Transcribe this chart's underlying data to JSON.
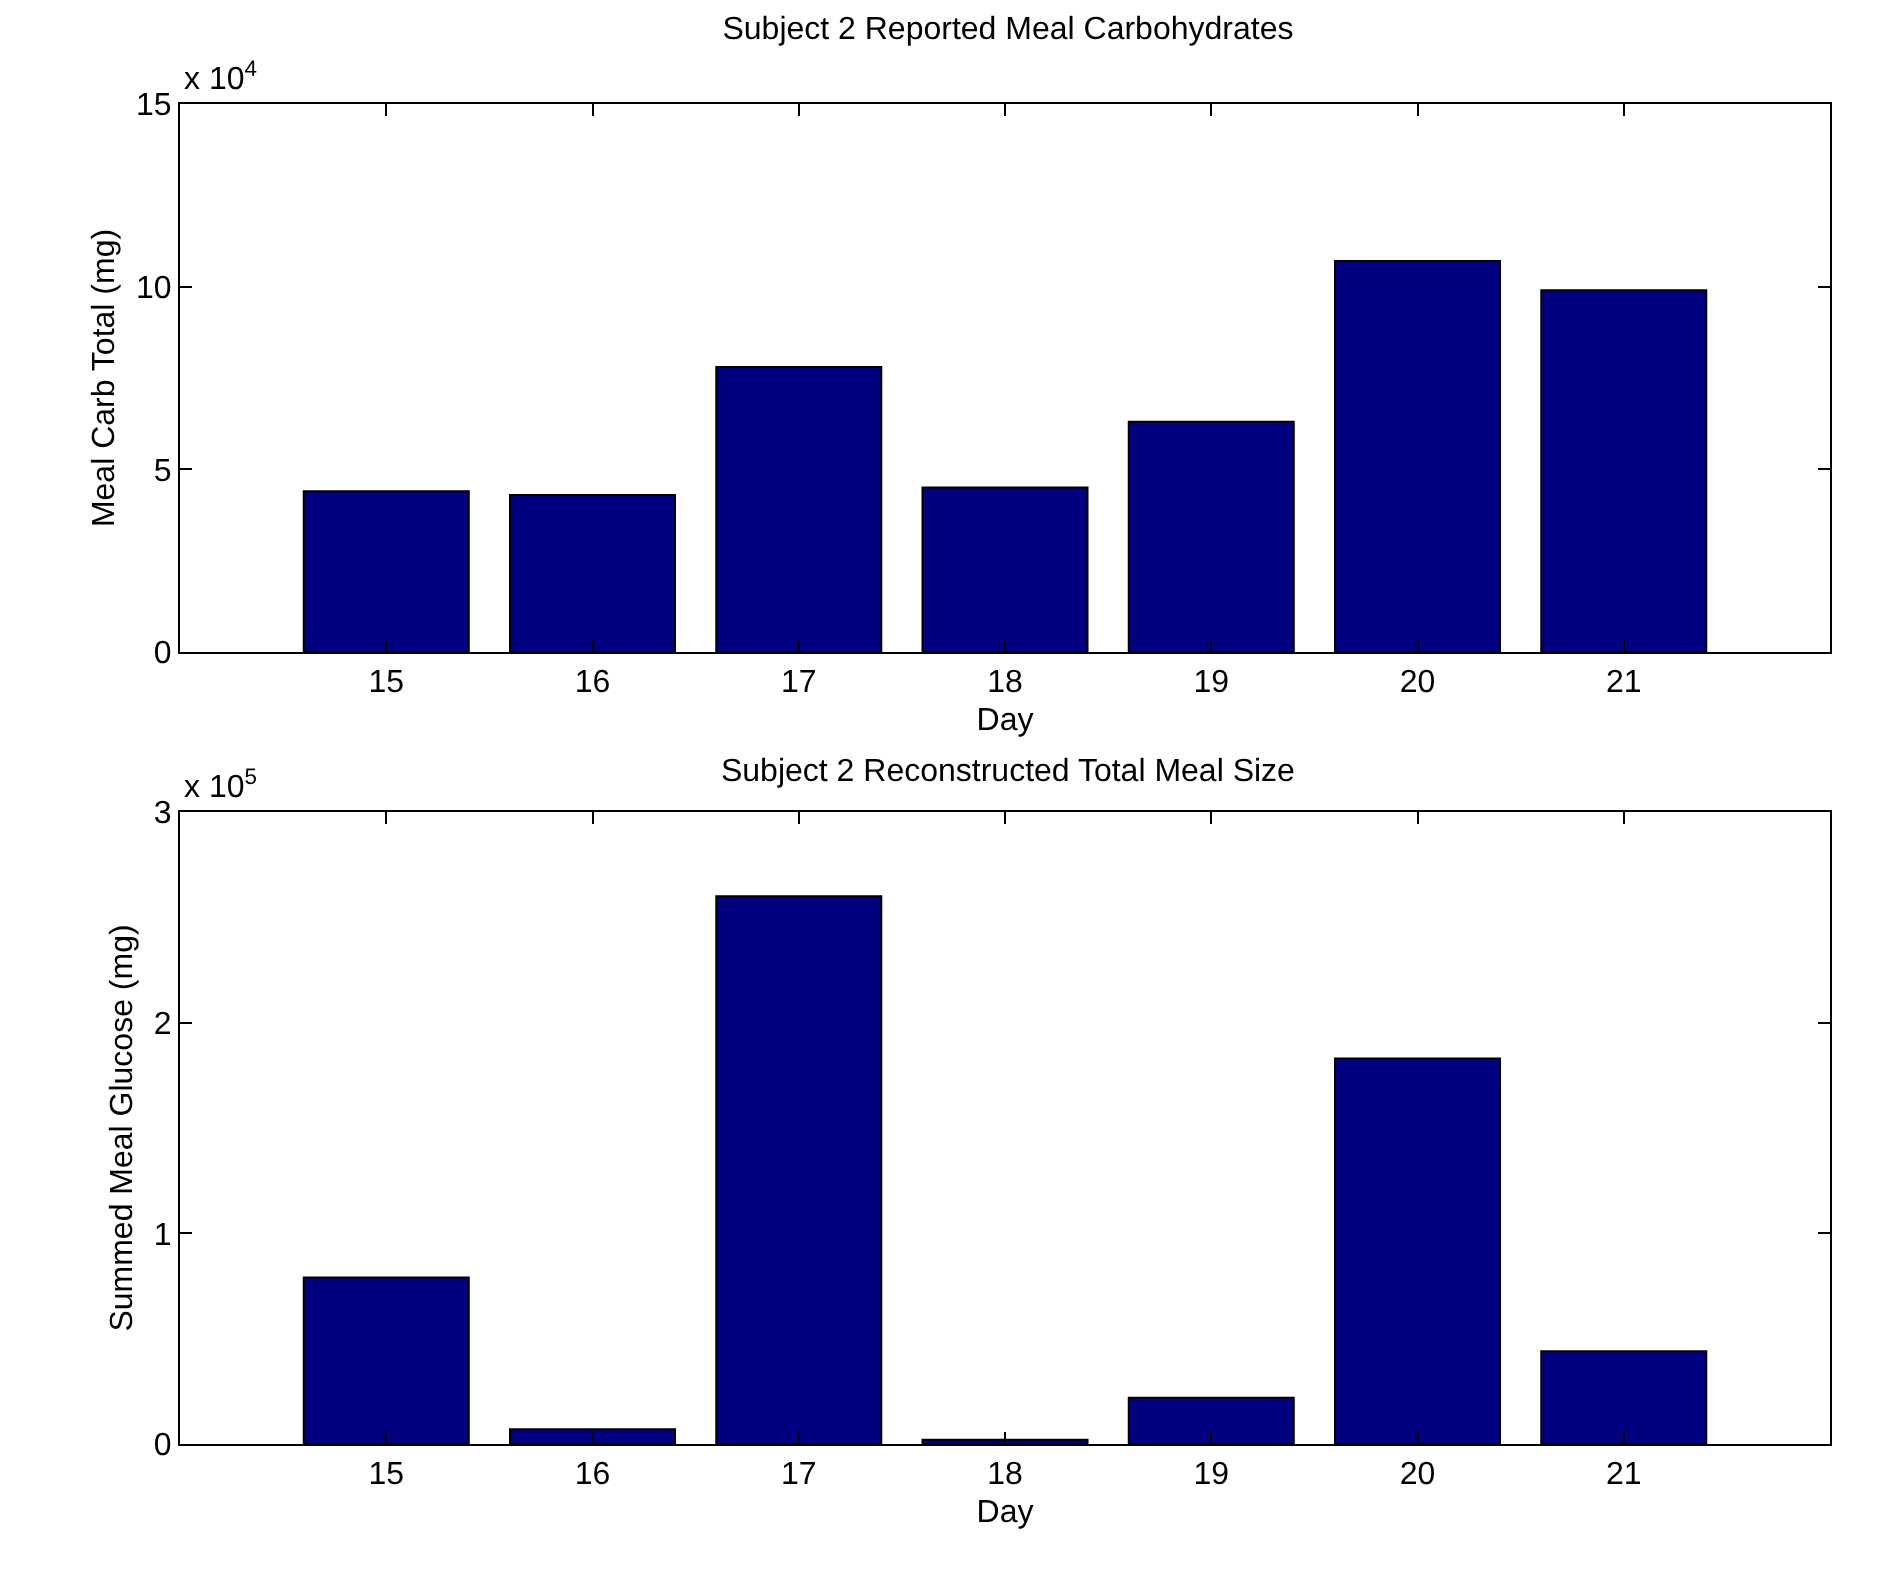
{
  "chart_data": [
    {
      "type": "bar",
      "title": "Subject 2 Reported Meal Carbohydrates",
      "xlabel": "Day",
      "ylabel": "Meal Carb Total (mg)",
      "annotations": [
        "x 10$^{4}$"
      ],
      "categories": [
        "15",
        "16",
        "17",
        "18",
        "19",
        "20",
        "21"
      ],
      "series": [
        {
          "color": "#000080",
          "values": [
            4.4,
            4.3,
            7.8,
            4.5,
            6.3,
            10.7,
            9.9
          ]
        }
      ],
      "ylim": [
        0,
        15
      ],
      "yticks": [
        0,
        5,
        10,
        15
      ],
      "grid": false,
      "legend": false
    },
    {
      "type": "bar",
      "title": "Subject 2 Reconstructed Total Meal Size",
      "xlabel": "Day",
      "ylabel": "Summed Meal Glucose (mg)",
      "annotations": [
        "x 10$^{5}$"
      ],
      "categories": [
        "15",
        "16",
        "17",
        "18",
        "19",
        "20",
        "21"
      ],
      "series": [
        {
          "color": "#000080",
          "values": [
            0.79,
            0.07,
            2.6,
            0.02,
            0.22,
            1.83,
            0.44
          ]
        }
      ],
      "ylim": [
        0,
        3
      ],
      "yticks": [
        0,
        1,
        2,
        3
      ],
      "grid": false,
      "legend": false
    }
  ]
}
